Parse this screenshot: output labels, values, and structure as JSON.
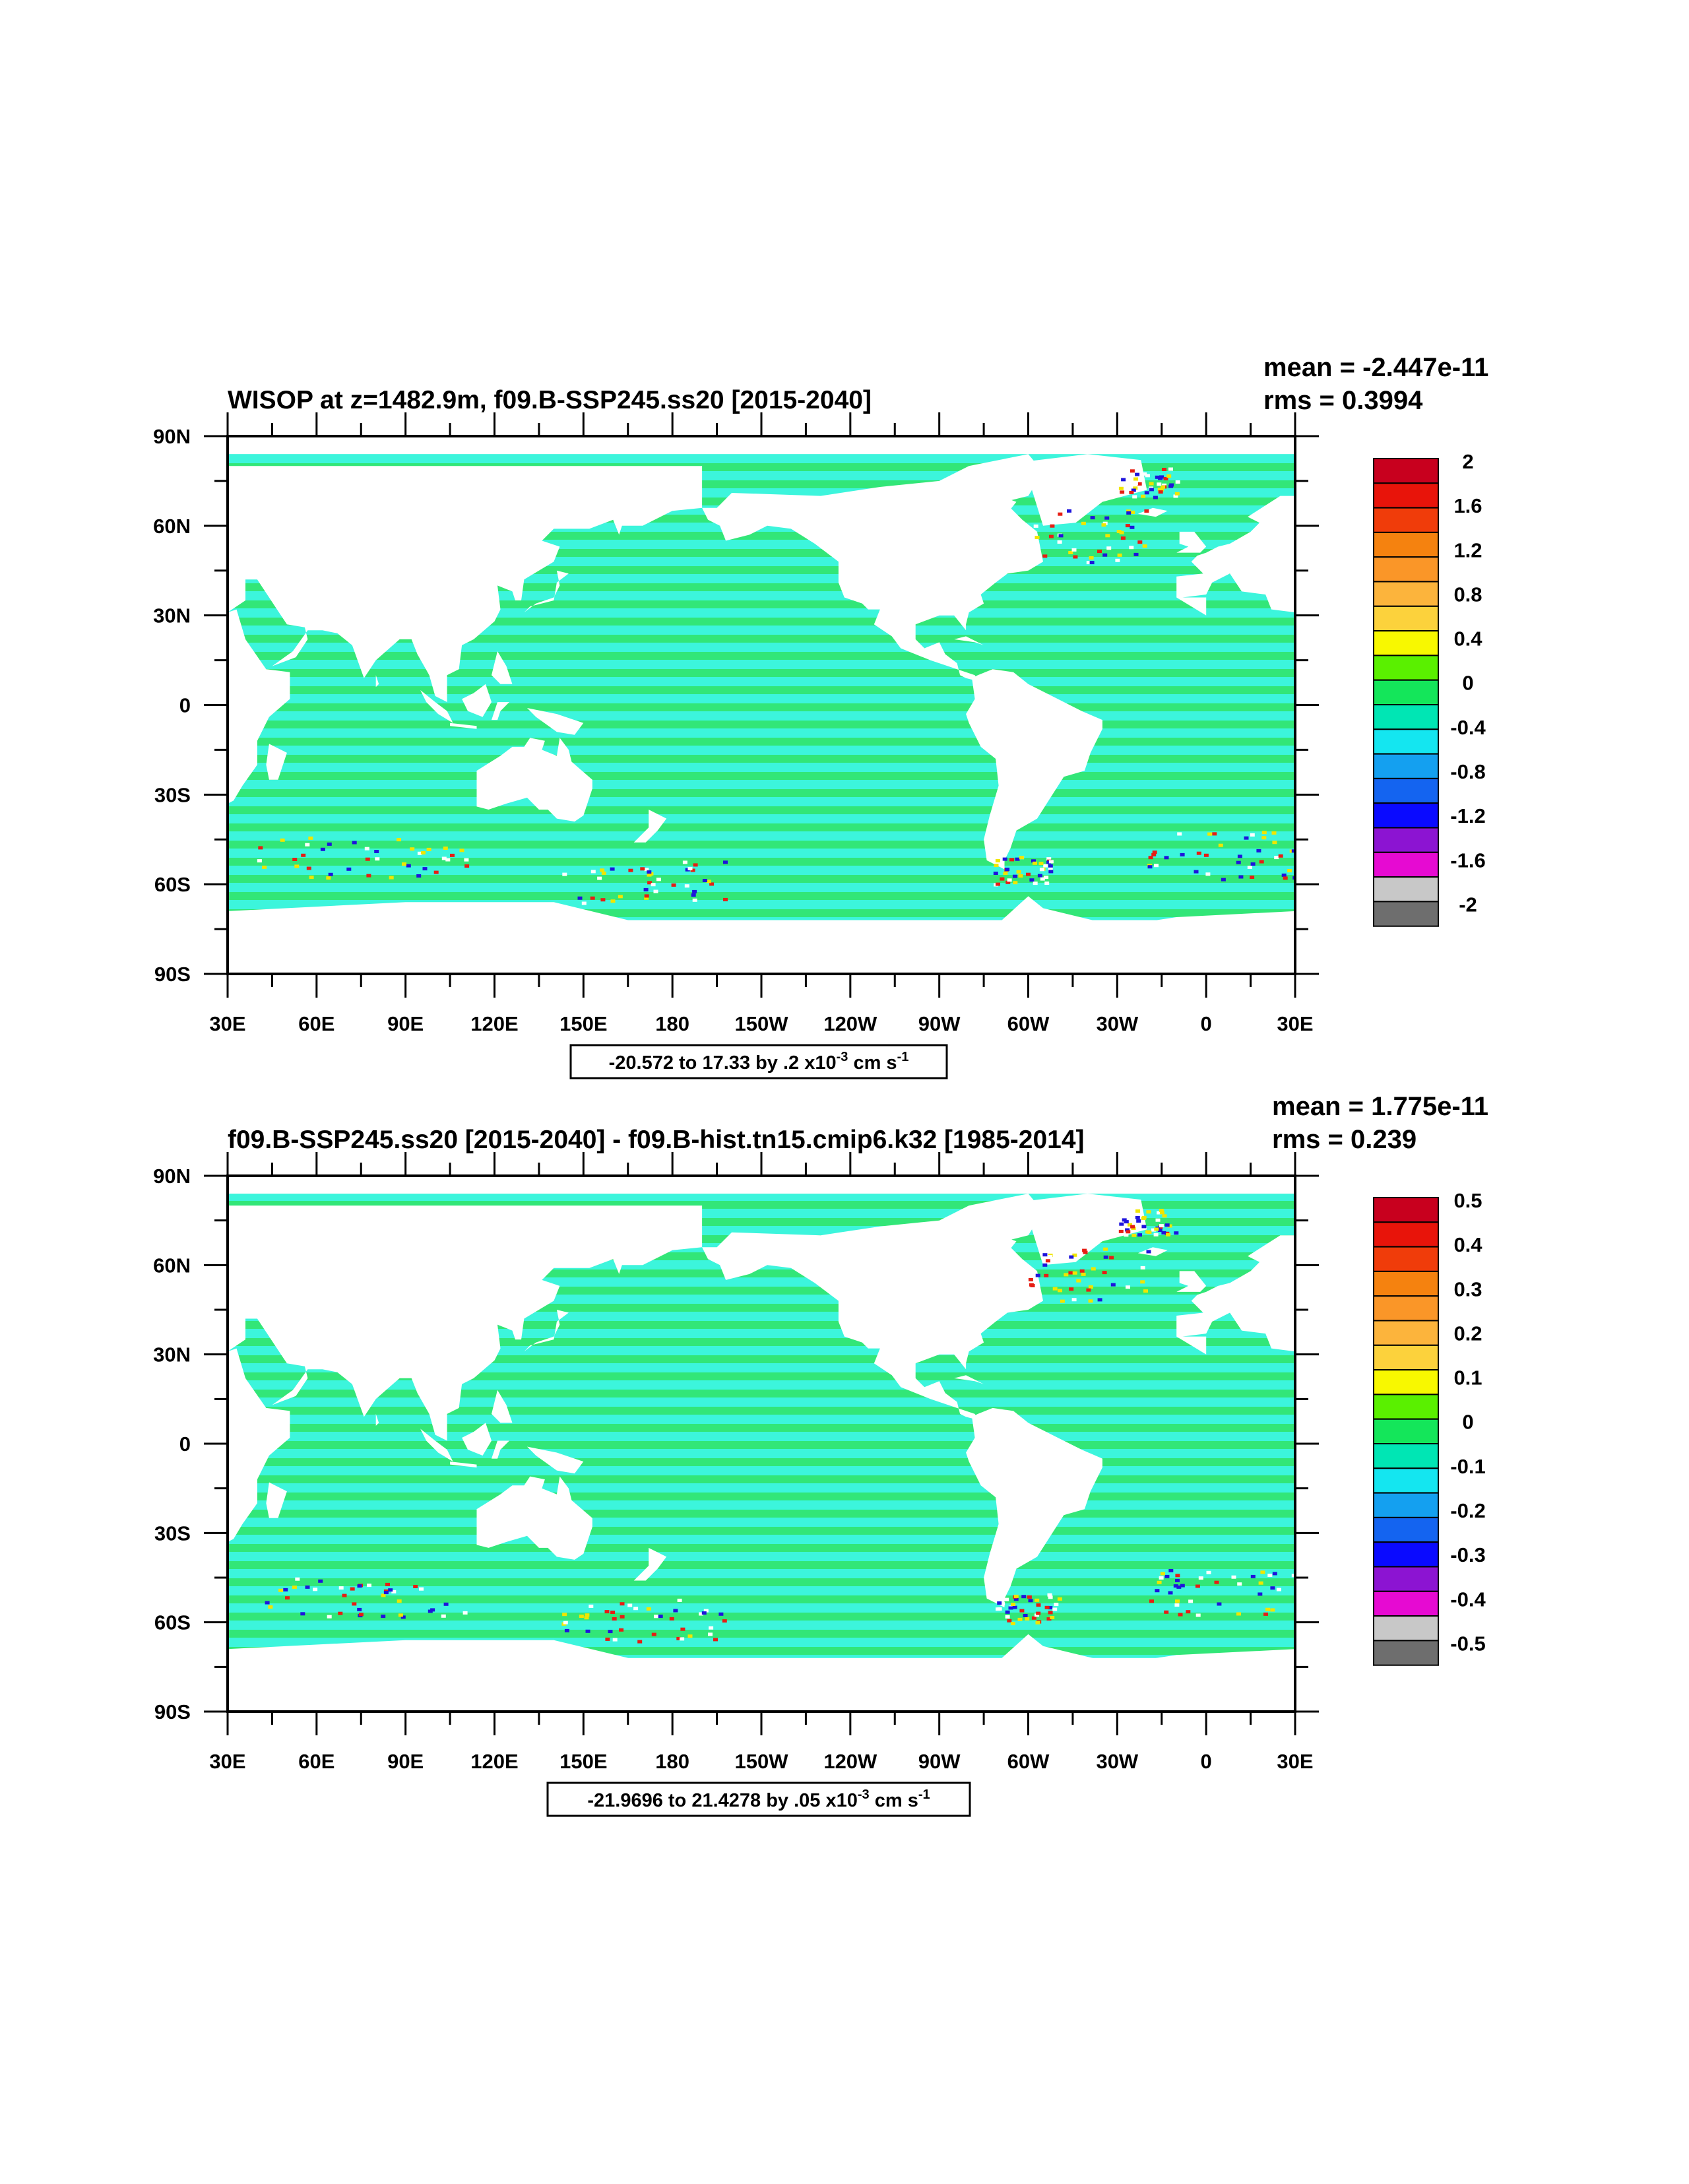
{
  "chart_data": [
    {
      "type": "heatmap",
      "title": "WISOP at z=1482.9m, f09.B-SSP245.ss20 [2015-2040]",
      "stats": [
        "mean = -2.447e-11",
        "rms = 0.3994"
      ],
      "x_ticks": [
        "30E",
        "60E",
        "90E",
        "120E",
        "150E",
        "180",
        "150W",
        "120W",
        "90W",
        "60W",
        "30W",
        "0",
        "30E"
      ],
      "y_ticks": [
        "90N",
        "60N",
        "30N",
        "0",
        "30S",
        "60S",
        "90S"
      ],
      "xlim": [
        30,
        390
      ],
      "ylim": [
        -90,
        90
      ],
      "contour_info": "-20.572 to 17.33 by .2 x10",
      "contour_info_exp": "-3",
      "contour_info_unit": " cm s",
      "contour_info_unit_exp": "-1",
      "colorbar_labels": [
        "2",
        "1.6",
        "1.2",
        "0.8",
        "0.4",
        "0",
        "-0.4",
        "-0.8",
        "-1.2",
        "-1.6",
        "-2"
      ],
      "colorbar_colors": [
        "#c8001e",
        "#e8140a",
        "#f03c0a",
        "#f5820f",
        "#fa9628",
        "#fcb43c",
        "#fcd23c",
        "#f8f800",
        "#5af000",
        "#14e65a",
        "#00e6b4",
        "#14e6f0",
        "#14a0f0",
        "#1464f0",
        "#0a0aff",
        "#8c14d2",
        "#e60ad2",
        "#c8c8c8",
        "#6e6e6e"
      ],
      "field_colors": {
        "land": "#ffffff",
        "ocean_light": "#3cf5dc",
        "ocean_dark": "#32e678",
        "hotspot_red": "#e61e14",
        "hotspot_blue": "#1e14dc",
        "hotspot_yellow": "#f0e600"
      }
    },
    {
      "type": "heatmap",
      "title": "f09.B-SSP245.ss20 [2015-2040] - f09.B-hist.tn15.cmip6.k32 [1985-2014]",
      "stats": [
        "mean = 1.775e-11",
        "rms = 0.239"
      ],
      "x_ticks": [
        "30E",
        "60E",
        "90E",
        "120E",
        "150E",
        "180",
        "150W",
        "120W",
        "90W",
        "60W",
        "30W",
        "0",
        "30E"
      ],
      "y_ticks": [
        "90N",
        "60N",
        "30N",
        "0",
        "30S",
        "60S",
        "90S"
      ],
      "xlim": [
        30,
        390
      ],
      "ylim": [
        -90,
        90
      ],
      "contour_info": "-21.9696 to 21.4278 by .05 x10",
      "contour_info_exp": "-3",
      "contour_info_unit": " cm s",
      "contour_info_unit_exp": "-1",
      "colorbar_labels": [
        "0.5",
        "0.4",
        "0.3",
        "0.2",
        "0.1",
        "0",
        "-0.1",
        "-0.2",
        "-0.3",
        "-0.4",
        "-0.5"
      ],
      "colorbar_colors": [
        "#c8001e",
        "#e8140a",
        "#f03c0a",
        "#f5820f",
        "#fa9628",
        "#fcb43c",
        "#fcd23c",
        "#f8f800",
        "#5af000",
        "#14e65a",
        "#00e6b4",
        "#14e6f0",
        "#14a0f0",
        "#1464f0",
        "#0a0aff",
        "#8c14d2",
        "#e60ad2",
        "#c8c8c8",
        "#6e6e6e"
      ],
      "field_colors": {
        "land": "#ffffff",
        "ocean_light": "#3cf5dc",
        "ocean_dark": "#32e678",
        "hotspot_red": "#e61e14",
        "hotspot_blue": "#1e14dc",
        "hotspot_yellow": "#f0e600"
      }
    }
  ]
}
